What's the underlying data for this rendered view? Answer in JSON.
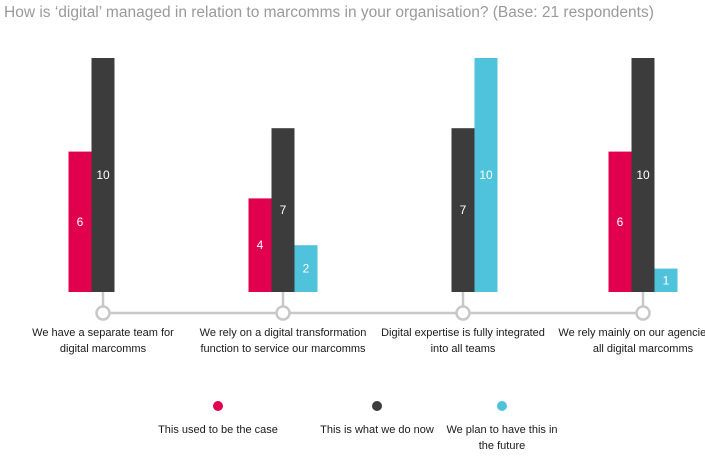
{
  "chart_data": {
    "type": "bar",
    "title": "How is ‘digital’ managed in relation to marcomms in your organisation? (Base: 21 respondents)",
    "xlabel": "",
    "ylabel": "",
    "ylim": [
      0,
      10
    ],
    "grid": false,
    "legend_position": "bottom",
    "categories": [
      "We have a separate team for digital marcomms",
      "We rely on a digital transformation function to service our marcomms",
      "Digital expertise is fully integrated into all teams",
      "We rely mainly on our agencies for all digital marcomms"
    ],
    "series": [
      {
        "name": "This used to be the case",
        "color": "#e0004d",
        "values": [
          6,
          4,
          null,
          6
        ]
      },
      {
        "name": "This is what we do now",
        "color": "#3c3c3c",
        "values": [
          10,
          7,
          7,
          10
        ]
      },
      {
        "name": "We plan to have this in the future",
        "color": "#4fc3db",
        "values": [
          null,
          2,
          10,
          1
        ]
      }
    ]
  },
  "timeline": {
    "line_color": "#c8c8c8"
  }
}
